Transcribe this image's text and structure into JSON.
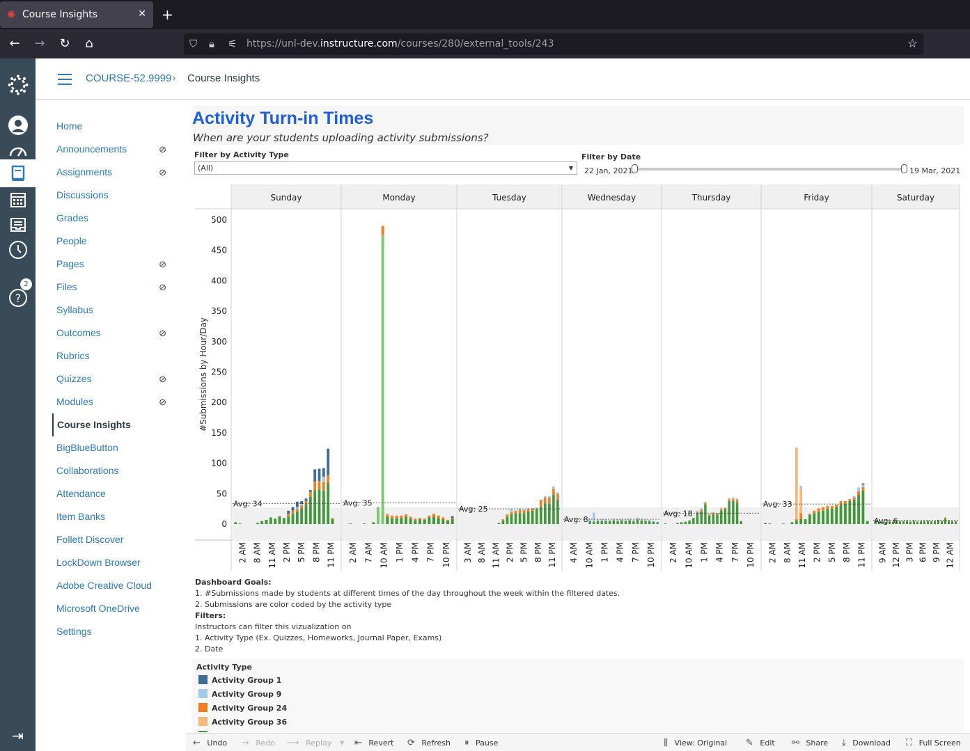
{
  "browser": {
    "tab_title": "Course Insights",
    "url_prefix": "https://unl-dev.",
    "url_domain": "instructure.com",
    "url_path": "/courses/280/external_tools/243"
  },
  "header": {
    "course": "COURSE-52.9999",
    "separator": "›",
    "page": "Course Insights"
  },
  "global_nav": {
    "help_badge": "2"
  },
  "course_nav": {
    "items": [
      {
        "label": "Home",
        "hidden": false
      },
      {
        "label": "Announcements",
        "hidden": true
      },
      {
        "label": "Assignments",
        "hidden": true
      },
      {
        "label": "Discussions",
        "hidden": false
      },
      {
        "label": "Grades",
        "hidden": false
      },
      {
        "label": "People",
        "hidden": false
      },
      {
        "label": "Pages",
        "hidden": true
      },
      {
        "label": "Files",
        "hidden": true
      },
      {
        "label": "Syllabus",
        "hidden": false
      },
      {
        "label": "Outcomes",
        "hidden": true
      },
      {
        "label": "Rubrics",
        "hidden": false
      },
      {
        "label": "Quizzes",
        "hidden": true
      },
      {
        "label": "Modules",
        "hidden": true
      },
      {
        "label": "Course Insights",
        "hidden": false,
        "active": true
      },
      {
        "label": "BigBlueButton",
        "hidden": false
      },
      {
        "label": "Collaborations",
        "hidden": false
      },
      {
        "label": "Attendance",
        "hidden": false
      },
      {
        "label": "Item Banks",
        "hidden": false
      },
      {
        "label": "Follett Discover",
        "hidden": false
      },
      {
        "label": "LockDown Browser",
        "hidden": false
      },
      {
        "label": "Adobe Creative Cloud",
        "hidden": false
      },
      {
        "label": "Microsoft OneDrive",
        "hidden": false
      },
      {
        "label": "Settings",
        "hidden": false
      }
    ]
  },
  "dashboard": {
    "title": "Activity Turn-in Times",
    "subtitle": "When are your students uploading activity submissions?",
    "filter_type_label": "Filter by Activity Type",
    "filter_type_value": "(All)",
    "filter_date_label": "Filter by Date",
    "date_from": "22 Jan, 2021",
    "date_to": "19 Mar, 2021",
    "goals_title": "Dashboard Goals:",
    "goals_1": "1. #Submissions made by students at different times of the day throughout the week within the filtered dates.",
    "goals_2": "2. Submissions are color coded by the activity type",
    "filters_title": "Filters:",
    "filters_1": "Instructors can filter this vizualization on",
    "filters_2": "1. Activity Type (Ex. Quizzes, Homeworks, Journal Paper, Exams)",
    "filters_3": "2. Date"
  },
  "legend": {
    "title": "Activity Type",
    "items": [
      {
        "label": "Activity Group 1",
        "color": "#3e6c9a"
      },
      {
        "label": "Activity Group 9",
        "color": "#a3c9e8"
      },
      {
        "label": "Activity Group 24",
        "color": "#f07f23"
      },
      {
        "label": "Activity Group 36",
        "color": "#f7b779"
      },
      {
        "label": "",
        "color": "#43973b"
      }
    ]
  },
  "toolbar": {
    "undo": "Undo",
    "redo": "Redo",
    "replay": "Replay",
    "revert": "Revert",
    "refresh": "Refresh",
    "pause": "Pause",
    "view": "View: Original",
    "edit": "Edit",
    "share": "Share",
    "download": "Download",
    "fullscreen": "Full Screen"
  },
  "chart_data": {
    "type": "bar",
    "stacked": true,
    "ylabel": "#Submissions by Hour/Day",
    "ylim": [
      0,
      520
    ],
    "yticks": [
      0,
      50,
      100,
      150,
      200,
      250,
      300,
      350,
      400,
      450,
      500
    ],
    "colors": {
      "green": "#43973b",
      "lightgreen": "#7dc870",
      "orange": "#f07f23",
      "peach": "#f7b779",
      "blue": "#3e6c9a",
      "lightblue": "#a3c9e8"
    },
    "panels": [
      {
        "day": "Sunday",
        "avg_label": "Avg: 34",
        "avg": 34,
        "ticks": [
          "2 AM",
          "8 AM",
          "11 AM",
          "2 PM",
          "5 PM",
          "8 PM",
          "11 PM"
        ],
        "hours": [
          1,
          2,
          3,
          4,
          5,
          6,
          7,
          8,
          9,
          10,
          11,
          12,
          13,
          14,
          15,
          16,
          17,
          18,
          19,
          20,
          21,
          22,
          23,
          24
        ],
        "green": [
          3,
          1,
          0,
          0,
          0,
          2,
          5,
          7,
          11,
          9,
          13,
          10,
          12,
          17,
          20,
          26,
          33,
          45,
          55,
          57,
          55,
          68,
          8,
          0
        ],
        "orange": [
          0,
          0,
          0,
          0,
          0,
          0,
          0,
          0,
          0,
          0,
          0,
          0,
          5,
          5,
          5,
          5,
          5,
          8,
          15,
          14,
          15,
          12,
          2,
          0
        ],
        "blue": [
          0,
          0,
          0,
          0,
          0,
          0,
          0,
          0,
          0,
          0,
          0,
          0,
          5,
          6,
          9,
          5,
          4,
          3,
          20,
          20,
          14,
          44,
          0,
          0
        ],
        "lightblue": [
          0,
          0,
          0,
          0,
          0,
          0,
          0,
          0,
          0,
          0,
          0,
          0,
          0,
          0,
          3,
          2,
          0,
          0,
          0,
          0,
          8,
          0,
          0,
          0
        ]
      },
      {
        "day": "Monday",
        "avg_label": "Avg: 35",
        "avg": 35,
        "ticks": [
          "2 AM",
          "7 AM",
          "10 AM",
          "1 PM",
          "4 PM",
          "7 PM",
          "10 PM"
        ],
        "hours": [
          1,
          2,
          3,
          4,
          5,
          6,
          7,
          8,
          9,
          10,
          11,
          12,
          13,
          14,
          15,
          16,
          17,
          18,
          19,
          20,
          21,
          22,
          23,
          24
        ],
        "green": [
          0,
          1,
          0,
          0,
          1,
          0,
          3,
          28,
          475,
          12,
          10,
          10,
          10,
          12,
          9,
          6,
          8,
          7,
          11,
          12,
          10,
          8,
          5,
          8
        ],
        "orange": [
          0,
          0,
          0,
          0,
          0,
          0,
          0,
          0,
          15,
          4,
          4,
          4,
          4,
          4,
          3,
          3,
          2,
          2,
          3,
          5,
          4,
          3,
          2,
          2
        ],
        "blue": [
          0,
          0,
          0,
          0,
          0,
          0,
          0,
          0,
          0,
          0,
          0,
          0,
          0,
          0,
          0,
          0,
          0,
          0,
          0,
          0,
          0,
          0,
          0,
          3
        ],
        "lightblue": [
          0,
          0,
          0,
          0,
          0,
          0,
          0,
          0,
          0,
          0,
          0,
          0,
          0,
          0,
          0,
          0,
          0,
          0,
          0,
          0,
          0,
          0,
          0,
          0
        ]
      },
      {
        "day": "Tuesday",
        "avg_label": "Avg: 25",
        "avg": 25,
        "ticks": [
          "3 AM",
          "8 AM",
          "11 AM",
          "2 PM",
          "5 PM",
          "8 PM",
          "11 PM"
        ],
        "hours": [
          1,
          2,
          3,
          4,
          5,
          6,
          7,
          8,
          9,
          10,
          11,
          12,
          13,
          14,
          15,
          16,
          17,
          18,
          19,
          20,
          21,
          22,
          23,
          24
        ],
        "green": [
          0,
          0,
          0,
          0,
          0,
          0,
          0,
          0,
          0,
          2,
          6,
          12,
          16,
          18,
          18,
          18,
          20,
          22,
          25,
          28,
          34,
          34,
          48,
          40
        ],
        "orange": [
          0,
          0,
          0,
          0,
          0,
          0,
          0,
          0,
          0,
          0,
          2,
          4,
          4,
          4,
          5,
          5,
          4,
          4,
          0,
          12,
          10,
          10,
          10,
          10
        ],
        "blue": [
          0,
          0,
          0,
          0,
          0,
          0,
          0,
          0,
          0,
          0,
          0,
          0,
          0,
          0,
          0,
          0,
          0,
          0,
          0,
          0,
          0,
          0,
          0,
          0
        ],
        "lightblue": [
          0,
          0,
          0,
          0,
          0,
          0,
          0,
          0,
          0,
          0,
          0,
          0,
          5,
          0,
          3,
          0,
          2,
          0,
          3,
          0,
          2,
          2,
          4,
          2
        ]
      },
      {
        "day": "Wednesday",
        "avg_label": "Avg: 8",
        "avg": 8,
        "ticks": [
          "4 AM",
          "10 AM",
          "1 PM",
          "4 PM",
          "7 PM",
          "10 PM"
        ],
        "hours": [
          1,
          2,
          3,
          4,
          5,
          6,
          7,
          8,
          9,
          10,
          11,
          12,
          13,
          14,
          15,
          16,
          17,
          18,
          19,
          20,
          21,
          22,
          23,
          24
        ],
        "green": [
          0,
          0,
          0,
          0,
          0,
          0,
          5,
          4,
          5,
          5,
          5,
          5,
          6,
          5,
          6,
          5,
          6,
          5,
          7,
          6,
          5,
          5,
          4,
          3
        ],
        "orange": [
          0,
          0,
          0,
          0,
          0,
          0,
          0,
          0,
          1,
          0,
          1,
          0,
          1,
          0,
          1,
          0,
          1,
          0,
          1,
          0,
          1,
          0,
          0,
          0
        ],
        "blue": [
          0,
          0,
          0,
          0,
          0,
          0,
          0,
          0,
          0,
          0,
          0,
          0,
          0,
          0,
          0,
          0,
          0,
          0,
          0,
          0,
          0,
          0,
          0,
          0
        ],
        "lightblue": [
          0,
          0,
          0,
          0,
          0,
          0,
          4,
          15,
          2,
          3,
          2,
          2,
          2,
          3,
          2,
          3,
          2,
          2,
          3,
          3,
          2,
          2,
          1,
          1
        ]
      },
      {
        "day": "Thursday",
        "avg_label": "Avg: 18",
        "avg": 18,
        "ticks": [
          "2 AM",
          "10 AM",
          "1 PM",
          "4 PM",
          "7 PM",
          "10 PM"
        ],
        "hours": [
          1,
          2,
          3,
          4,
          5,
          6,
          7,
          8,
          9,
          10,
          11,
          12,
          13,
          14,
          15,
          16,
          17,
          18,
          19,
          20,
          21,
          22,
          23,
          24
        ],
        "green": [
          1,
          0,
          0,
          2,
          3,
          4,
          6,
          10,
          18,
          20,
          32,
          14,
          17,
          16,
          22,
          25,
          38,
          38,
          35,
          5,
          0,
          0,
          0,
          0
        ],
        "orange": [
          0,
          0,
          0,
          0,
          0,
          0,
          0,
          0,
          2,
          4,
          3,
          2,
          2,
          2,
          3,
          2,
          3,
          4,
          5,
          0,
          0,
          0,
          0,
          0
        ],
        "blue": [
          0,
          0,
          0,
          0,
          0,
          0,
          0,
          0,
          0,
          0,
          0,
          0,
          0,
          0,
          0,
          0,
          0,
          0,
          0,
          0,
          0,
          0,
          0,
          0
        ],
        "lightblue": [
          0,
          0,
          0,
          0,
          0,
          0,
          0,
          0,
          2,
          2,
          2,
          0,
          0,
          0,
          2,
          0,
          2,
          2,
          2,
          0,
          0,
          0,
          0,
          0
        ]
      },
      {
        "day": "Friday",
        "avg_label": "Avg: 33",
        "avg": 33,
        "ticks": [
          "2 AM",
          "8 AM",
          "11 AM",
          "2 PM",
          "5 PM",
          "8 PM",
          "11 PM"
        ],
        "hours": [
          1,
          2,
          3,
          4,
          5,
          6,
          7,
          8,
          9,
          10,
          11,
          12,
          13,
          14,
          15,
          16,
          17,
          18,
          19,
          20,
          21,
          22,
          23,
          24
        ],
        "green": [
          2,
          1,
          0,
          0,
          1,
          0,
          3,
          6,
          8,
          8,
          15,
          18,
          20,
          22,
          25,
          26,
          28,
          32,
          34,
          38,
          40,
          48,
          55,
          5
        ],
        "orange": [
          0,
          0,
          0,
          0,
          0,
          0,
          0,
          2,
          10,
          0,
          2,
          4,
          6,
          6,
          5,
          4,
          4,
          6,
          4,
          3,
          4,
          6,
          6,
          0
        ],
        "blue": [
          0,
          0,
          0,
          0,
          0,
          0,
          0,
          0,
          0,
          0,
          0,
          0,
          0,
          0,
          0,
          0,
          0,
          0,
          0,
          0,
          0,
          0,
          2,
          0
        ],
        "lightblue": [
          0,
          0,
          0,
          0,
          0,
          0,
          0,
          0,
          5,
          0,
          0,
          0,
          0,
          0,
          0,
          0,
          0,
          0,
          0,
          0,
          2,
          6,
          4,
          0
        ],
        "peach": [
          0,
          0,
          0,
          0,
          0,
          0,
          0,
          118,
          40,
          0,
          0,
          0,
          0,
          0,
          0,
          0,
          0,
          0,
          0,
          0,
          0,
          0,
          0,
          0
        ]
      },
      {
        "day": "Saturday",
        "avg_label": "Avg: 6",
        "avg": 6,
        "ticks": [
          "9 AM",
          "12 PM",
          "3 PM",
          "6 PM",
          "9 PM",
          "12 AM"
        ],
        "hours": [
          1,
          2,
          3,
          4,
          5,
          6,
          7,
          8,
          9,
          10,
          11,
          12,
          13,
          14,
          15,
          16,
          17,
          18,
          19,
          20,
          21,
          22,
          23,
          24
        ],
        "green": [
          5,
          4,
          4,
          3,
          4,
          4,
          5,
          4,
          5,
          5,
          4,
          5,
          4,
          4,
          5,
          5,
          5,
          4,
          6,
          5,
          9,
          5,
          5,
          4
        ],
        "orange": [
          0,
          0,
          0,
          0,
          1,
          0,
          0,
          1,
          0,
          1,
          0,
          1,
          0,
          1,
          0,
          1,
          0,
          1,
          1,
          0,
          2,
          1,
          0,
          1
        ],
        "blue": [
          0,
          0,
          0,
          0,
          0,
          0,
          0,
          0,
          0,
          0,
          0,
          0,
          0,
          0,
          0,
          0,
          0,
          0,
          0,
          0,
          0,
          0,
          0,
          0
        ],
        "lightblue": [
          0,
          0,
          0,
          0,
          0,
          0,
          0,
          0,
          0,
          0,
          0,
          0,
          0,
          0,
          0,
          0,
          0,
          0,
          0,
          0,
          0,
          0,
          0,
          0
        ]
      }
    ]
  }
}
